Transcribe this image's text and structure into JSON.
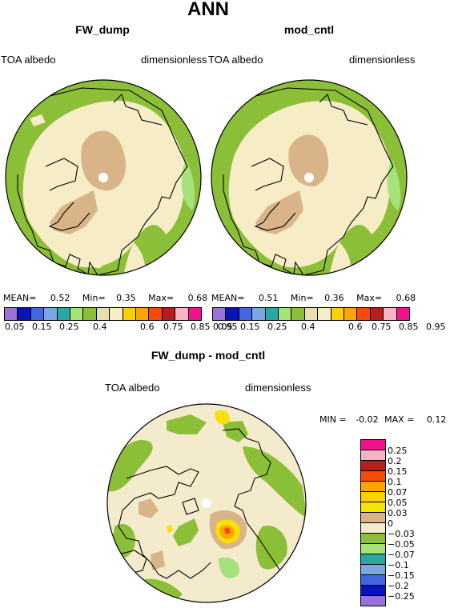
{
  "title": "ANN",
  "panels": [
    {
      "title": "FW_dump",
      "left_label": "TOA albedo",
      "right_label": "dimensionless",
      "stats": {
        "mean_label": "MEAN=",
        "mean": "0.52",
        "min_label": "Min=",
        "min": "0.35",
        "max_label": "Max=",
        "max": "0.68"
      }
    },
    {
      "title": "mod_cntl",
      "left_label": "TOA albedo",
      "right_label": "dimensionless",
      "stats": {
        "mean_label": "MEAN=",
        "mean": "0.51",
        "min_label": "Min=",
        "min": "0.36",
        "max_label": "Max=",
        "max": "0.68"
      }
    }
  ],
  "colorbar": {
    "colors": [
      "#9a73d8",
      "#0a14b4",
      "#4168e0",
      "#7aa6e6",
      "#2aa7a4",
      "#a6e27a",
      "#8cbf38",
      "#e8deb0",
      "#f6ecc6",
      "#fad000",
      "#fba600",
      "#f74a07",
      "#b61e1e",
      "#f5b5c4",
      "#f0148c"
    ],
    "ticks": [
      "0.05",
      "0.15",
      "0.25",
      "0.4",
      "0.6",
      "0.75",
      "0.85",
      "0.95"
    ]
  },
  "diff": {
    "title": "FW_dump - mod_cntl",
    "left_label": "TOA albedo",
    "right_label": "dimensionless",
    "minmax": {
      "min_label": "MIN =",
      "min": "-0.02",
      "max_label": "MAX =",
      "max": "0.12"
    },
    "colorbar": {
      "colors": [
        "#f0148c",
        "#f5b5c4",
        "#b61e1e",
        "#f74a07",
        "#fba600",
        "#fad000",
        "#f6e400",
        "#d9b488",
        "#f4ebcd",
        "#8cbf38",
        "#a6e27a",
        "#2aa7a4",
        "#7aa6e6",
        "#4168e0",
        "#0a14b4",
        "#9a73d8"
      ],
      "ticks": [
        "0.25",
        "0.2",
        "0.15",
        "0.1",
        "0.07",
        "0.05",
        "0.03",
        "0",
        "−0.03",
        "−0.05",
        "−0.07",
        "−0.1",
        "−0.15",
        "−0.2",
        "−0.25"
      ]
    }
  },
  "map_colors": {
    "land_green": "#8cbf38",
    "light_green": "#a6e27a",
    "cream": "#f6ecc6",
    "tan": "#d9b488",
    "ice_tan": "#d7b48a",
    "diff_cream": "#f4ebcd",
    "yellow": "#f8e000",
    "orange": "#fba600",
    "red": "#f74a07"
  }
}
